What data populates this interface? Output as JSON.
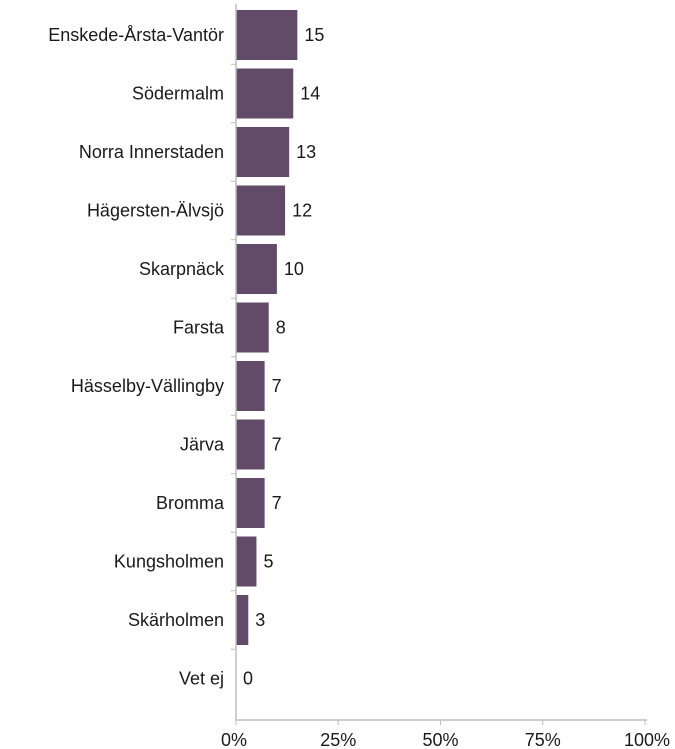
{
  "chart_data": {
    "type": "bar",
    "orientation": "horizontal",
    "categories": [
      "Enskede-Årsta-Vantör",
      "Södermalm",
      "Norra Innerstaden",
      "Hägersten-Älvsjö",
      "Skarpnäck",
      "Farsta",
      "Hässelby-Vällingby",
      "Järva",
      "Bromma",
      "Kungsholmen",
      "Skärholmen",
      "Vet ej"
    ],
    "values": [
      15,
      14,
      13,
      12,
      10,
      8,
      7,
      7,
      7,
      5,
      3,
      0
    ],
    "value_labels": [
      "15",
      "14",
      "13",
      "12",
      "10",
      "8",
      "7",
      "7",
      "7",
      "5",
      "3",
      "0"
    ],
    "x_ticks": [
      "0%",
      "25%",
      "50%",
      "75%",
      "100%"
    ],
    "xlim": [
      0,
      100
    ],
    "title": "",
    "xlabel": "",
    "ylabel": "",
    "grid": false,
    "legend": "none",
    "bar_color": "#624a69",
    "axis_color": "#bdbdbd"
  }
}
